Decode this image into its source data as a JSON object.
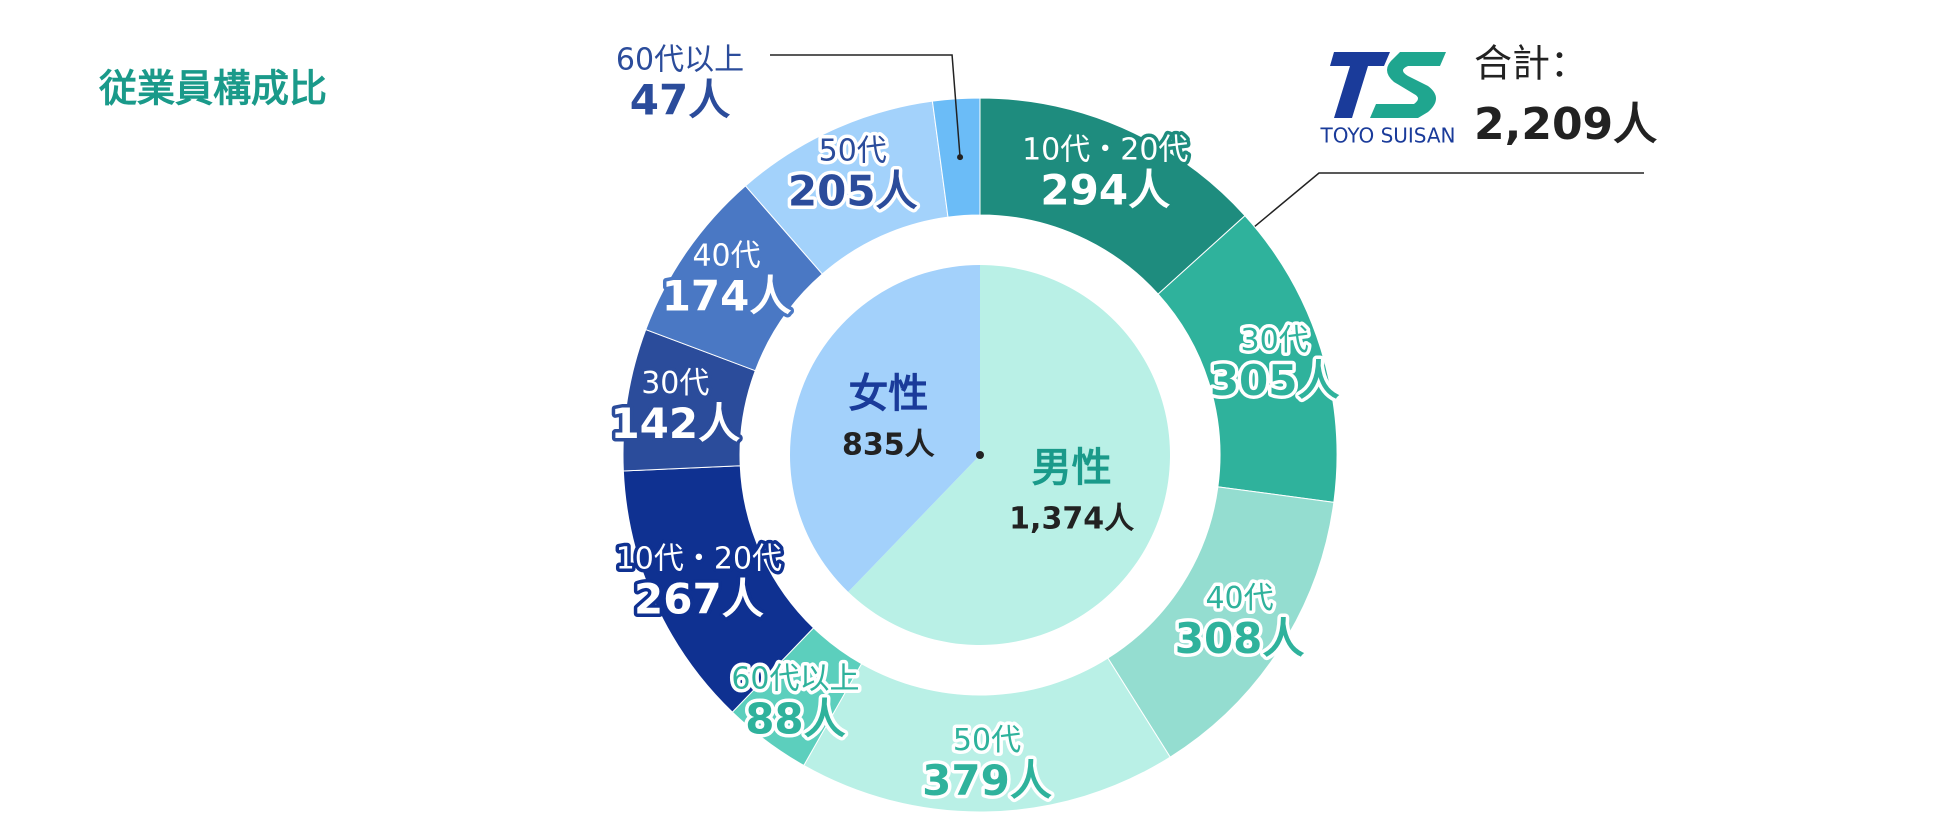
{
  "chart_data": {
    "type": "nested-donut",
    "title": "従業員構成比",
    "logo_text": "TOYO SUISAN",
    "total": {
      "label": "合計：",
      "value": 2209,
      "value_label": "2,209人"
    },
    "inner": {
      "categories": [
        "男性",
        "女性"
      ],
      "values": [
        1374,
        835
      ],
      "value_labels": [
        "1,374人",
        "835人"
      ],
      "colors": [
        "#b9f0e6",
        "#a3d1fb"
      ]
    },
    "outer": [
      {
        "categories": [
          "10代・20代",
          "30代",
          "40代",
          "50代",
          "60代以上"
        ],
        "values": [
          294,
          305,
          308,
          379,
          88
        ],
        "value_labels": [
          "294人",
          "305人",
          "308人",
          "379人",
          "88人"
        ],
        "colors": [
          "#1e8c7e",
          "#2fb29c",
          "#94ddd0",
          "#b9f0e6",
          "#5ccfbd"
        ]
      },
      {
        "categories": [
          "10代・20代",
          "30代",
          "40代",
          "50代",
          "60代以上"
        ],
        "values": [
          267,
          142,
          174,
          205,
          47
        ],
        "value_labels": [
          "267人",
          "142人",
          "174人",
          "205人",
          "47人"
        ],
        "colors": [
          "#0f3191",
          "#2b4c9b",
          "#4a78c4",
          "#a3d2fb",
          "#6bbcf7"
        ]
      }
    ]
  }
}
